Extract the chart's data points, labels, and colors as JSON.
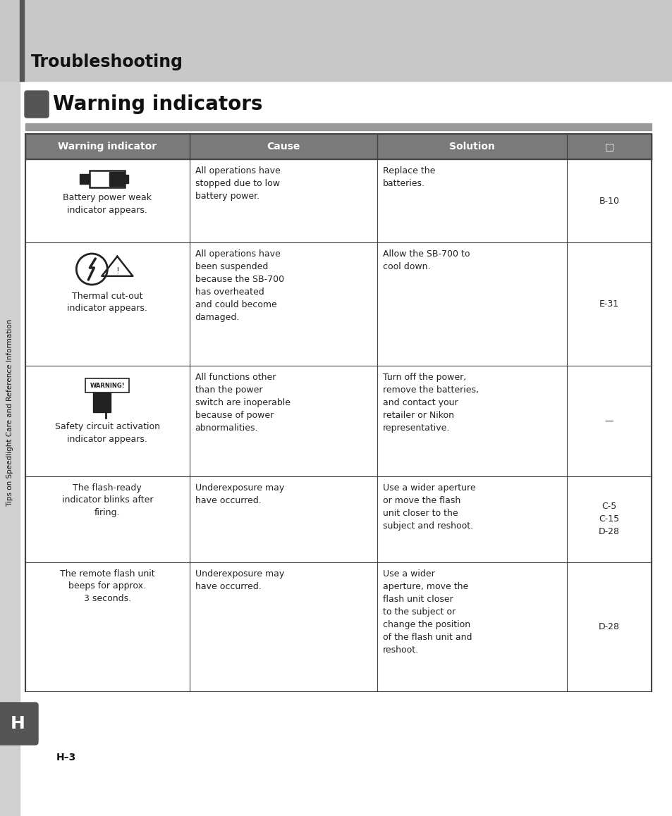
{
  "page_bg": "#ffffff",
  "header_bg": "#c8c8c8",
  "header_text": "Troubleshooting",
  "header_text_color": "#111111",
  "section_title": "Warning indicators",
  "section_title_color": "#111111",
  "table_header_bg": "#7a7a7a",
  "table_header_text_color": "#ffffff",
  "table_header_cols": [
    "Warning indicator",
    "Cause",
    "Solution",
    "□"
  ],
  "table_border_color": "#444444",
  "sidebar_text": "Tips on Speedlight Care and Reference Information",
  "sidebar_text_color": "#111111",
  "footer_tab_bg": "#555555",
  "footer_tab_text": "H",
  "footer_tab_text_color": "#ffffff",
  "page_num": "H–3",
  "rows": [
    {
      "indicator": "Battery power weak\nindicator appears.",
      "icon": "battery",
      "cause": "All operations have\nstopped due to low\nbattery power.",
      "solution": "Replace the\nbatteries.",
      "ref": "B-10"
    },
    {
      "indicator": "Thermal cut-out\nindicator appears.",
      "icon": "thermal",
      "cause": "All operations have\nbeen suspended\nbecause the SB-700\nhas overheated\nand could become\ndamaged.",
      "solution": "Allow the SB-700 to\ncool down.",
      "ref": "E-31"
    },
    {
      "indicator": "Safety circuit activation\nindicator appears.",
      "icon": "warning",
      "cause": "All functions other\nthan the power\nswitch are inoperable\nbecause of power\nabnormalities.",
      "solution": "Turn off the power,\nremove the batteries,\nand contact your\nretailer or Nikon\nrepresentative.",
      "ref": "—"
    },
    {
      "indicator": "The flash-ready\nindicator blinks after\nfiring.",
      "icon": "",
      "cause": "Underexposure may\nhave occurred.",
      "solution": "Use a wider aperture\nor move the flash\nunit closer to the\nsubject and reshoot.",
      "ref": "C-5\nC-15\nD-28"
    },
    {
      "indicator": "The remote flash unit\nbeeps for approx.\n3 seconds.",
      "icon": "",
      "cause": "Underexposure may\nhave occurred.",
      "solution": "Use a wider\naperture, move the\nflash unit closer\nto the subject or\nchange the position\nof the flash unit and\nreshoot.",
      "ref": "D-28"
    }
  ]
}
